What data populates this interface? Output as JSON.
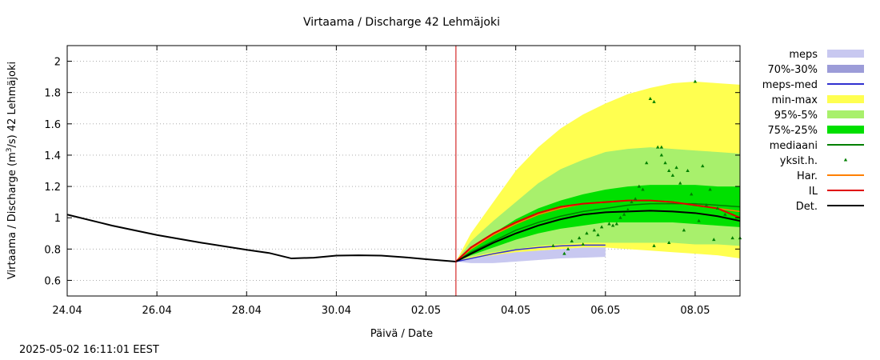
{
  "chart_data": {
    "type": "line",
    "title": "Virtaama / Discharge  42 Lehmäjoki",
    "xlabel": "Päivä / Date",
    "ylabel_prefix": "Virtaama / Discharge (m",
    "ylabel_sup": "3",
    "ylabel_suffix": "/s)  42 Lehmäjoki",
    "ylim": [
      0.5,
      2.1
    ],
    "xlim": [
      "2025-04-24",
      "2025-05-09"
    ],
    "yticks": [
      0.6,
      0.8,
      1,
      1.2,
      1.4,
      1.6,
      1.8,
      2
    ],
    "ytick_labels": [
      "0.6",
      "0.8",
      "1",
      "1.2",
      "1.4",
      "1.6",
      "1.8",
      "2"
    ],
    "xticks": [
      "2025-04-24",
      "2025-04-26",
      "2025-04-28",
      "2025-04-30",
      "2025-05-02",
      "2025-05-04",
      "2025-05-06",
      "2025-05-08"
    ],
    "xtick_labels": [
      "24.04",
      "26.04",
      "28.04",
      "30.04",
      "02.05",
      "04.05",
      "06.05",
      "08.05"
    ],
    "grid": true,
    "legend_position": "right",
    "forecast_start": "2025-05-02 16:00",
    "colors": {
      "meps": "#c8c8f0",
      "p70_30": "#9c9cd8",
      "meps_med": "#3030d0",
      "minmax": "#ffff50",
      "p95_5": "#a8f06c",
      "p75_25": "#00e000",
      "mediaani": "#008000",
      "yksit": "#008000",
      "har": "#ff8000",
      "il": "#e00000",
      "det": "#000000",
      "now": "#cc0000"
    },
    "legend": [
      {
        "key": "meps",
        "label": "meps",
        "kind": "band"
      },
      {
        "key": "p70_30",
        "label": "70%-30%",
        "kind": "band"
      },
      {
        "key": "meps_med",
        "label": "meps-med",
        "kind": "line"
      },
      {
        "key": "minmax",
        "label": "min-max",
        "kind": "band"
      },
      {
        "key": "p95_5",
        "label": "95%-5%",
        "kind": "band"
      },
      {
        "key": "p75_25",
        "label": "75%-25%",
        "kind": "band"
      },
      {
        "key": "mediaani",
        "label": "mediaani",
        "kind": "line"
      },
      {
        "key": "yksit",
        "label": "yksit.h.",
        "kind": "point"
      },
      {
        "key": "har",
        "label": "Har.",
        "kind": "line"
      },
      {
        "key": "il",
        "label": "IL",
        "kind": "line"
      },
      {
        "key": "det",
        "label": "Det.",
        "kind": "line"
      }
    ],
    "series": [
      {
        "key": "det_observed",
        "kind": "line",
        "x": [
          "2025-04-24 00:00",
          "2025-04-25 00:00",
          "2025-04-26 00:00",
          "2025-04-27 00:00",
          "2025-04-28 00:00",
          "2025-04-28 12:00",
          "2025-04-29 00:00",
          "2025-04-29 12:00",
          "2025-04-30 00:00",
          "2025-04-30 12:00",
          "2025-05-01 00:00",
          "2025-05-01 12:00",
          "2025-05-02 00:00",
          "2025-05-02 16:00"
        ],
        "y": [
          1.02,
          0.95,
          0.89,
          0.84,
          0.795,
          0.775,
          0.74,
          0.745,
          0.758,
          0.76,
          0.758,
          0.748,
          0.735,
          0.72
        ]
      },
      {
        "key": "minmax",
        "kind": "band",
        "x": [
          "2025-05-02 16:00",
          "2025-05-03 00:00",
          "2025-05-03 12:00",
          "2025-05-04 00:00",
          "2025-05-04 12:00",
          "2025-05-05 00:00",
          "2025-05-05 12:00",
          "2025-05-06 00:00",
          "2025-05-06 12:00",
          "2025-05-07 00:00",
          "2025-05-07 12:00",
          "2025-05-08 00:00",
          "2025-05-08 12:00",
          "2025-05-09 00:00"
        ],
        "lower": [
          0.72,
          0.73,
          0.75,
          0.77,
          0.79,
          0.8,
          0.81,
          0.81,
          0.8,
          0.79,
          0.78,
          0.77,
          0.76,
          0.74
        ],
        "upper": [
          0.72,
          0.9,
          1.1,
          1.3,
          1.45,
          1.57,
          1.66,
          1.73,
          1.79,
          1.83,
          1.86,
          1.87,
          1.86,
          1.85
        ]
      },
      {
        "key": "p95_5",
        "kind": "band",
        "x": [
          "2025-05-02 16:00",
          "2025-05-03 00:00",
          "2025-05-03 12:00",
          "2025-05-04 00:00",
          "2025-05-04 12:00",
          "2025-05-05 00:00",
          "2025-05-05 12:00",
          "2025-05-06 00:00",
          "2025-05-06 12:00",
          "2025-05-07 00:00",
          "2025-05-07 12:00",
          "2025-05-08 00:00",
          "2025-05-08 12:00",
          "2025-05-09 00:00"
        ],
        "lower": [
          0.72,
          0.75,
          0.78,
          0.8,
          0.82,
          0.83,
          0.84,
          0.84,
          0.84,
          0.84,
          0.84,
          0.83,
          0.83,
          0.82
        ],
        "upper": [
          0.72,
          0.85,
          0.98,
          1.1,
          1.22,
          1.31,
          1.37,
          1.42,
          1.44,
          1.45,
          1.44,
          1.43,
          1.42,
          1.41
        ]
      },
      {
        "key": "p75_25",
        "kind": "band",
        "x": [
          "2025-05-02 16:00",
          "2025-05-03 00:00",
          "2025-05-03 12:00",
          "2025-05-04 00:00",
          "2025-05-04 12:00",
          "2025-05-05 00:00",
          "2025-05-05 12:00",
          "2025-05-06 00:00",
          "2025-05-06 12:00",
          "2025-05-07 00:00",
          "2025-05-07 12:00",
          "2025-05-08 00:00",
          "2025-05-08 12:00",
          "2025-05-09 00:00"
        ],
        "lower": [
          0.72,
          0.76,
          0.81,
          0.86,
          0.9,
          0.93,
          0.95,
          0.97,
          0.97,
          0.97,
          0.97,
          0.96,
          0.95,
          0.94
        ],
        "upper": [
          0.72,
          0.8,
          0.9,
          0.99,
          1.06,
          1.11,
          1.15,
          1.18,
          1.2,
          1.21,
          1.21,
          1.21,
          1.2,
          1.2
        ]
      },
      {
        "key": "meps",
        "kind": "band",
        "x": [
          "2025-05-02 16:00",
          "2025-05-03 00:00",
          "2025-05-03 12:00",
          "2025-05-04 00:00",
          "2025-05-04 12:00",
          "2025-05-05 00:00",
          "2025-05-05 12:00",
          "2025-05-06 00:00"
        ],
        "lower": [
          0.72,
          0.71,
          0.71,
          0.72,
          0.73,
          0.74,
          0.745,
          0.75
        ],
        "upper": [
          0.72,
          0.74,
          0.76,
          0.78,
          0.79,
          0.8,
          0.81,
          0.81
        ]
      },
      {
        "key": "meps_med",
        "kind": "line",
        "x": [
          "2025-05-02 16:00",
          "2025-05-03 00:00",
          "2025-05-03 12:00",
          "2025-05-04 00:00",
          "2025-05-04 12:00",
          "2025-05-05 00:00",
          "2025-05-05 12:00",
          "2025-05-06 00:00"
        ],
        "y": [
          0.72,
          0.74,
          0.77,
          0.795,
          0.81,
          0.82,
          0.825,
          0.825
        ]
      },
      {
        "key": "mediaani",
        "kind": "line",
        "x": [
          "2025-05-02 16:00",
          "2025-05-03 00:00",
          "2025-05-03 12:00",
          "2025-05-04 00:00",
          "2025-05-04 12:00",
          "2025-05-05 00:00",
          "2025-05-05 12:00",
          "2025-05-06 00:00",
          "2025-05-06 12:00",
          "2025-05-07 00:00",
          "2025-05-07 12:00",
          "2025-05-08 00:00",
          "2025-05-08 12:00",
          "2025-05-09 00:00"
        ],
        "y": [
          0.72,
          0.78,
          0.85,
          0.92,
          0.97,
          1.01,
          1.04,
          1.06,
          1.08,
          1.09,
          1.09,
          1.09,
          1.08,
          1.07
        ]
      },
      {
        "key": "har",
        "kind": "line",
        "x": [
          "2025-05-02 16:00",
          "2025-05-03 00:00",
          "2025-05-03 12:00",
          "2025-05-04 00:00",
          "2025-05-04 12:00",
          "2025-05-05 00:00",
          "2025-05-05 12:00",
          "2025-05-06 00:00",
          "2025-05-06 12:00",
          "2025-05-07 00:00",
          "2025-05-07 12:00",
          "2025-05-08 00:00",
          "2025-05-08 12:00",
          "2025-05-09 00:00"
        ],
        "y": [
          0.72,
          0.8,
          0.89,
          0.96,
          1.02,
          1.06,
          1.09,
          1.1,
          1.11,
          1.11,
          1.1,
          1.08,
          1.06,
          1.04
        ]
      },
      {
        "key": "il",
        "kind": "line",
        "x": [
          "2025-05-02 16:00",
          "2025-05-03 00:00",
          "2025-05-03 12:00",
          "2025-05-04 00:00",
          "2025-05-04 12:00",
          "2025-05-05 00:00",
          "2025-05-05 12:00",
          "2025-05-06 00:00",
          "2025-05-06 12:00",
          "2025-05-07 00:00",
          "2025-05-07 12:00",
          "2025-05-08 00:00",
          "2025-05-08 12:00",
          "2025-05-09 00:00"
        ],
        "y": [
          0.72,
          0.81,
          0.9,
          0.97,
          1.03,
          1.07,
          1.09,
          1.1,
          1.11,
          1.11,
          1.1,
          1.08,
          1.06,
          1.0
        ]
      },
      {
        "key": "det",
        "kind": "line",
        "x": [
          "2025-05-02 16:00",
          "2025-05-03 00:00",
          "2025-05-03 12:00",
          "2025-05-04 00:00",
          "2025-05-04 12:00",
          "2025-05-05 00:00",
          "2025-05-05 12:00",
          "2025-05-06 00:00",
          "2025-05-06 12:00",
          "2025-05-07 00:00",
          "2025-05-07 12:00",
          "2025-05-08 00:00",
          "2025-05-08 12:00",
          "2025-05-09 00:00"
        ],
        "y": [
          0.72,
          0.77,
          0.84,
          0.9,
          0.95,
          0.99,
          1.02,
          1.035,
          1.04,
          1.045,
          1.04,
          1.03,
          1.01,
          0.98
        ]
      },
      {
        "key": "yksit",
        "kind": "scatter",
        "x": [
          "2025-05-04 20:00",
          "2025-05-05 02:00",
          "2025-05-05 06:00",
          "2025-05-05 10:00",
          "2025-05-05 14:00",
          "2025-05-05 18:00",
          "2025-05-05 22:00",
          "2025-05-06 04:00",
          "2025-05-06 08:00",
          "2025-05-06 12:00",
          "2025-05-06 16:00",
          "2025-05-06 20:00",
          "2025-05-07 00:00",
          "2025-05-07 02:00",
          "2025-05-07 04:00",
          "2025-05-07 06:00",
          "2025-05-07 08:00",
          "2025-05-07 10:00",
          "2025-05-07 12:00",
          "2025-05-07 16:00",
          "2025-05-07 20:00",
          "2025-05-08 00:00",
          "2025-05-08 04:00",
          "2025-05-08 08:00",
          "2025-05-08 12:00",
          "2025-05-08 16:00",
          "2025-05-08 20:00",
          "2025-05-09 00:00",
          "2025-05-06 06:00",
          "2025-05-06 14:00",
          "2025-05-06 22:00",
          "2025-05-07 06:00",
          "2025-05-07 14:00",
          "2025-05-07 22:00",
          "2025-05-08 06:00",
          "2025-05-05 04:00",
          "2025-05-05 12:00",
          "2025-05-05 20:00",
          "2025-05-06 02:00",
          "2025-05-06 10:00",
          "2025-05-06 18:00",
          "2025-05-07 02:00",
          "2025-05-07 10:00",
          "2025-05-07 18:00",
          "2025-05-08 02:00",
          "2025-05-08 10:00"
        ],
        "y": [
          0.82,
          0.77,
          0.85,
          0.87,
          0.9,
          0.92,
          0.94,
          0.95,
          1.0,
          1.05,
          1.12,
          1.18,
          1.76,
          1.74,
          1.45,
          1.45,
          1.35,
          1.3,
          1.27,
          1.22,
          1.3,
          1.87,
          1.33,
          1.18,
          1.06,
          1.02,
          0.87,
          0.87,
          0.96,
          1.1,
          1.35,
          1.4,
          1.32,
          1.15,
          1.08,
          0.8,
          0.83,
          0.89,
          0.96,
          1.02,
          1.2,
          0.82,
          0.84,
          0.92,
          0.98,
          0.86
        ]
      }
    ]
  },
  "timestamp": "2025-05-02 16:11:01 EEST"
}
